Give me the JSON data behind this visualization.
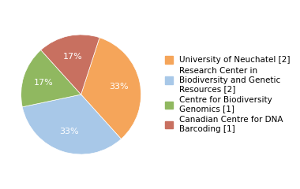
{
  "slices": [
    {
      "label": "University of Neuchatel [2]",
      "value": 2,
      "color": "#F5A55A"
    },
    {
      "label": "Research Center in\nBiodiversity and Genetic\nResources [2]",
      "value": 2,
      "color": "#A8C8E8"
    },
    {
      "label": "Centre for Biodiversity\nGenomics [1]",
      "value": 1,
      "color": "#90B860"
    },
    {
      "label": "Canadian Centre for DNA\nBarcoding [1]",
      "value": 1,
      "color": "#C87060"
    }
  ],
  "legend_labels": [
    "University of Neuchatel [2]",
    "Research Center in\nBiodiversity and Genetic\nResources [2]",
    "Centre for Biodiversity\nGenomics [1]",
    "Canadian Centre for DNA\nBarcoding [1]"
  ],
  "autopct_fontsize": 8,
  "legend_fontsize": 7.5,
  "startangle": 72,
  "pctdistance": 0.65
}
